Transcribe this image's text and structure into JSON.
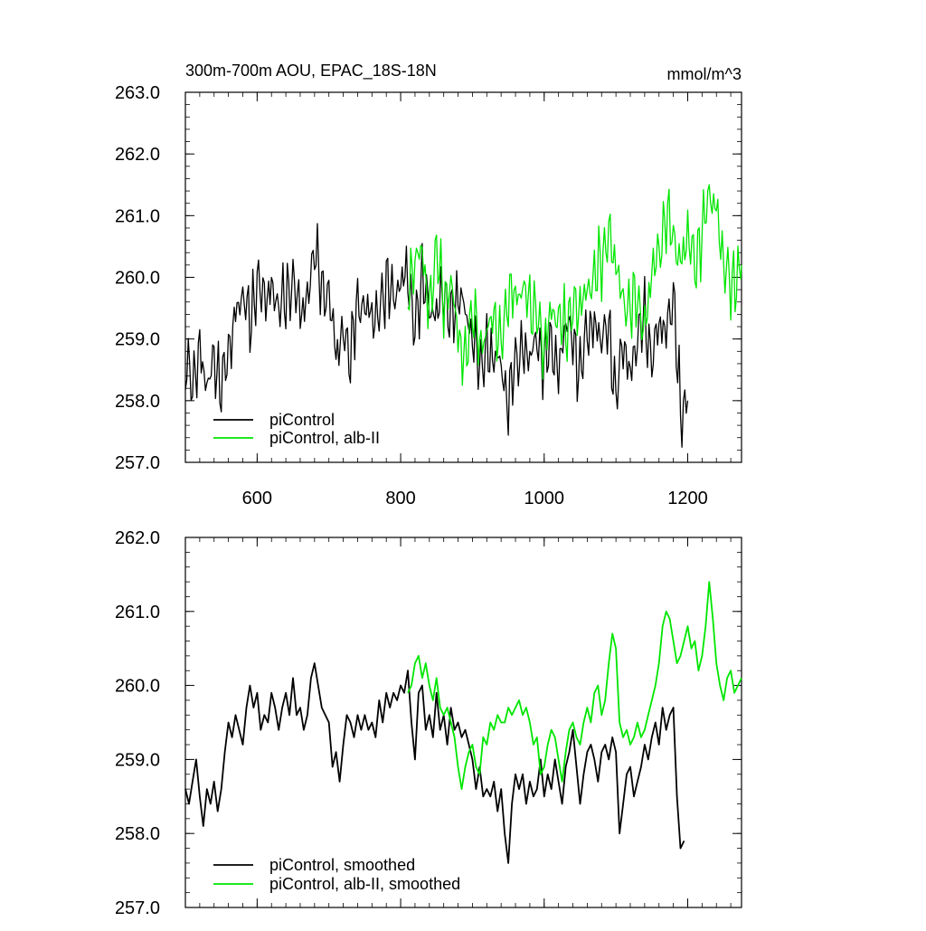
{
  "chart_data": [
    {
      "type": "line",
      "title": "300m-700m AOU, EPAC_18S-18N",
      "unit_label": "mmol/m^3",
      "xlim": [
        500,
        1275
      ],
      "ylim": [
        257.0,
        263.0
      ],
      "x_ticks": [
        600,
        800,
        1000,
        1200
      ],
      "x_tick_labels": [
        "600",
        "800",
        "1000",
        "1200"
      ],
      "y_ticks": [
        257.0,
        258.0,
        259.0,
        260.0,
        261.0,
        262.0,
        263.0
      ],
      "y_tick_labels": [
        "257.0",
        "258.0",
        "259.0",
        "260.0",
        "261.0",
        "262.0",
        "263.0"
      ],
      "legend_position": "bottom-left",
      "series": [
        {
          "name": "piControl",
          "color": "#000000",
          "x": [
            500,
            510,
            520,
            530,
            540,
            550,
            560,
            570,
            580,
            590,
            600,
            610,
            620,
            630,
            640,
            650,
            660,
            670,
            680,
            690,
            700,
            710,
            720,
            730,
            740,
            750,
            760,
            770,
            780,
            790,
            800,
            810,
            820,
            830,
            840,
            850,
            860,
            870,
            880,
            890,
            900,
            910,
            920,
            930,
            940,
            950,
            960,
            970,
            980,
            990,
            1000,
            1010,
            1020,
            1030,
            1040,
            1050,
            1060,
            1070,
            1080,
            1090,
            1100,
            1110,
            1120,
            1130,
            1140,
            1150,
            1160,
            1170,
            1180,
            1190,
            1200
          ],
          "y": [
            258.6,
            258.3,
            258.9,
            258.1,
            258.7,
            258.2,
            258.8,
            259.5,
            259.6,
            259.3,
            259.9,
            259.7,
            259.9,
            259.4,
            259.7,
            259.9,
            259.5,
            259.7,
            260.4,
            259.8,
            259.7,
            258.8,
            259.2,
            258.6,
            259.6,
            259.5,
            259.4,
            259.5,
            259.8,
            259.7,
            259.9,
            260.1,
            259.2,
            259.9,
            259.5,
            259.4,
            259.8,
            259.4,
            259.6,
            259.5,
            259.0,
            258.6,
            258.9,
            258.6,
            258.6,
            257.9,
            258.7,
            258.9,
            258.6,
            259.0,
            258.6,
            259.0,
            258.5,
            259.2,
            259.0,
            258.4,
            259.2,
            259.3,
            258.9,
            259.2,
            258.0,
            259.0,
            258.5,
            258.9,
            259.4,
            258.6,
            259.3,
            259.2,
            259.6,
            257.8,
            258.0
          ]
        },
        {
          "name": "piControl, alb-II",
          "color": "#00e600",
          "x": [
            810,
            820,
            830,
            840,
            850,
            860,
            870,
            880,
            890,
            900,
            910,
            920,
            930,
            940,
            950,
            960,
            970,
            980,
            990,
            1000,
            1010,
            1020,
            1030,
            1040,
            1050,
            1060,
            1070,
            1080,
            1090,
            1100,
            1110,
            1120,
            1130,
            1140,
            1150,
            1160,
            1170,
            1180,
            1190,
            1200,
            1210,
            1220,
            1230,
            1240,
            1250,
            1260,
            1270,
            1275
          ],
          "y": [
            259.9,
            260.2,
            260.5,
            259.5,
            260.4,
            259.6,
            259.9,
            259.1,
            258.7,
            259.4,
            258.9,
            259.1,
            259.4,
            259.0,
            259.6,
            259.7,
            259.8,
            259.6,
            259.5,
            258.7,
            259.5,
            259.3,
            259.2,
            259.6,
            259.4,
            259.8,
            260.0,
            260.3,
            260.8,
            260.1,
            259.6,
            259.5,
            259.7,
            259.2,
            260.0,
            260.4,
            261.0,
            260.7,
            260.3,
            260.6,
            260.2,
            260.7,
            261.4,
            261.2,
            260.1,
            259.9,
            260.0,
            260.2
          ]
        }
      ]
    },
    {
      "type": "line",
      "xlim": [
        500,
        1275
      ],
      "ylim": [
        257.0,
        262.0
      ],
      "x_ticks": [
        600,
        800,
        1000,
        1200
      ],
      "y_ticks": [
        257.0,
        258.0,
        259.0,
        260.0,
        261.0,
        262.0
      ],
      "y_tick_labels": [
        "257.0",
        "258.0",
        "259.0",
        "260.0",
        "261.0",
        "262.0"
      ],
      "legend_position": "bottom-left",
      "series": [
        {
          "name": "piControl, smoothed",
          "color": "#000000",
          "x": [
            500,
            505,
            510,
            515,
            520,
            525,
            530,
            535,
            540,
            545,
            550,
            555,
            560,
            565,
            570,
            575,
            580,
            585,
            590,
            595,
            600,
            605,
            610,
            615,
            620,
            625,
            630,
            635,
            640,
            645,
            650,
            655,
            660,
            665,
            670,
            675,
            680,
            685,
            690,
            695,
            700,
            705,
            710,
            715,
            720,
            725,
            730,
            735,
            740,
            745,
            750,
            755,
            760,
            765,
            770,
            775,
            780,
            785,
            790,
            795,
            800,
            805,
            810,
            815,
            820,
            825,
            830,
            835,
            840,
            845,
            850,
            855,
            860,
            865,
            870,
            875,
            880,
            885,
            890,
            895,
            900,
            905,
            910,
            915,
            920,
            925,
            930,
            935,
            940,
            945,
            950,
            955,
            960,
            965,
            970,
            975,
            980,
            985,
            990,
            995,
            1000,
            1005,
            1010,
            1015,
            1020,
            1025,
            1030,
            1035,
            1040,
            1045,
            1050,
            1055,
            1060,
            1065,
            1070,
            1075,
            1080,
            1085,
            1090,
            1095,
            1100,
            1105,
            1110,
            1115,
            1120,
            1125,
            1130,
            1135,
            1140,
            1145,
            1150,
            1155,
            1160,
            1165,
            1170,
            1175,
            1180,
            1185,
            1190,
            1195
          ],
          "y": [
            258.6,
            258.4,
            258.7,
            259.0,
            258.5,
            258.1,
            258.6,
            258.4,
            258.7,
            258.3,
            258.6,
            259.1,
            259.5,
            259.3,
            259.6,
            259.4,
            259.2,
            259.7,
            260.0,
            259.7,
            259.9,
            259.4,
            259.6,
            259.5,
            259.9,
            259.7,
            259.4,
            259.7,
            259.9,
            259.6,
            260.1,
            259.6,
            259.7,
            259.4,
            259.6,
            260.1,
            260.3,
            260.0,
            259.7,
            259.6,
            259.5,
            258.9,
            259.1,
            258.7,
            259.2,
            259.6,
            259.5,
            259.3,
            259.6,
            259.4,
            259.6,
            259.4,
            259.5,
            259.3,
            259.8,
            259.5,
            259.9,
            259.7,
            259.9,
            259.8,
            260.0,
            259.9,
            260.2,
            259.5,
            259.0,
            259.9,
            260.0,
            259.4,
            259.6,
            259.3,
            259.9,
            259.4,
            259.6,
            259.2,
            259.7,
            259.4,
            259.5,
            259.3,
            259.4,
            259.2,
            259.0,
            258.6,
            258.9,
            258.5,
            258.6,
            258.5,
            258.7,
            258.3,
            258.6,
            258.0,
            257.6,
            258.4,
            258.8,
            258.6,
            258.8,
            258.4,
            258.7,
            258.5,
            258.6,
            259.0,
            258.5,
            258.8,
            258.6,
            259.0,
            258.7,
            258.4,
            258.9,
            259.1,
            259.4,
            258.9,
            258.4,
            258.8,
            259.1,
            259.2,
            259.0,
            258.7,
            259.1,
            259.2,
            259.0,
            259.3,
            259.1,
            258.0,
            258.4,
            258.8,
            258.9,
            258.5,
            258.7,
            258.9,
            259.2,
            259.0,
            259.3,
            259.5,
            259.2,
            259.7,
            259.4,
            259.6,
            259.7,
            258.5,
            257.8,
            257.9
          ]
        },
        {
          "name": "piControl, alb-II, smoothed",
          "color": "#00e600",
          "x": [
            810,
            815,
            820,
            825,
            830,
            835,
            840,
            845,
            850,
            855,
            860,
            865,
            870,
            875,
            880,
            885,
            890,
            895,
            900,
            905,
            910,
            915,
            920,
            925,
            930,
            935,
            940,
            945,
            950,
            955,
            960,
            965,
            970,
            975,
            980,
            985,
            990,
            995,
            1000,
            1005,
            1010,
            1015,
            1020,
            1025,
            1030,
            1035,
            1040,
            1045,
            1050,
            1055,
            1060,
            1065,
            1070,
            1075,
            1080,
            1085,
            1090,
            1095,
            1100,
            1105,
            1110,
            1115,
            1120,
            1125,
            1130,
            1135,
            1140,
            1145,
            1150,
            1155,
            1160,
            1165,
            1170,
            1175,
            1180,
            1185,
            1190,
            1195,
            1200,
            1205,
            1210,
            1215,
            1220,
            1225,
            1230,
            1235,
            1240,
            1245,
            1250,
            1255,
            1260,
            1265,
            1270,
            1275
          ],
          "y": [
            259.9,
            260.0,
            260.3,
            260.4,
            260.1,
            260.3,
            260.0,
            259.8,
            260.1,
            259.7,
            259.6,
            259.7,
            259.5,
            259.3,
            258.9,
            258.6,
            258.9,
            259.1,
            259.2,
            258.9,
            258.8,
            259.3,
            259.2,
            259.5,
            259.4,
            259.6,
            259.5,
            259.5,
            259.7,
            259.6,
            259.7,
            259.8,
            259.6,
            259.7,
            259.5,
            259.2,
            259.3,
            258.8,
            258.9,
            259.2,
            259.4,
            259.3,
            259.0,
            258.7,
            259.1,
            259.4,
            259.5,
            259.3,
            259.2,
            259.5,
            259.7,
            259.5,
            259.9,
            260.0,
            259.6,
            259.8,
            260.3,
            260.7,
            260.5,
            259.5,
            259.3,
            259.4,
            259.2,
            259.3,
            259.5,
            259.3,
            259.4,
            259.6,
            259.8,
            260.0,
            260.3,
            260.8,
            261.0,
            260.9,
            260.6,
            260.3,
            260.4,
            260.6,
            260.8,
            260.5,
            260.6,
            260.2,
            260.4,
            260.8,
            261.4,
            260.9,
            260.3,
            260.0,
            259.8,
            260.1,
            260.2,
            259.9,
            260.0,
            260.1
          ]
        }
      ]
    }
  ]
}
